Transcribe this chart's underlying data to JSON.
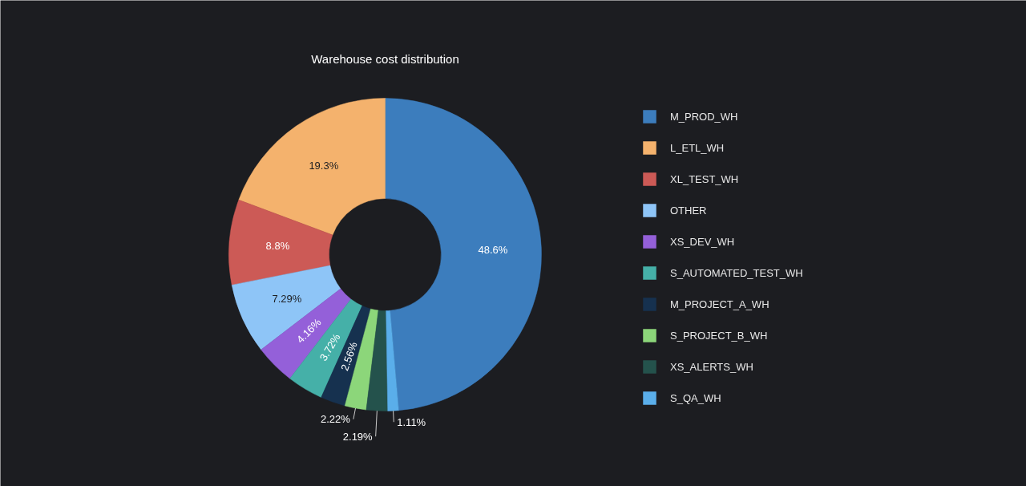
{
  "chart_data": {
    "type": "donut",
    "title": "Warehouse cost distribution",
    "categories": [
      "M_PROD_WH",
      "L_ETL_WH",
      "XL_TEST_WH",
      "OTHER",
      "XS_DEV_WH",
      "S_AUTOMATED_TEST_WH",
      "M_PROJECT_A_WH",
      "S_PROJECT_B_WH",
      "XS_ALERTS_WH",
      "S_QA_WH"
    ],
    "values": [
      48.6,
      19.3,
      8.8,
      7.29,
      4.16,
      3.72,
      2.56,
      2.22,
      2.19,
      1.11
    ],
    "value_labels": [
      "48.6%",
      "19.3%",
      "8.8%",
      "7.29%",
      "4.16%",
      "3.72%",
      "2.56%",
      "2.22%",
      "2.19%",
      "1.11%"
    ],
    "colors": [
      "#3c7dbd",
      "#f4b26d",
      "#cc5a56",
      "#8ec5f7",
      "#9460d9",
      "#45b0a8",
      "#16314f",
      "#8cd67a",
      "#24524c",
      "#5aaeea"
    ],
    "legend": "right"
  }
}
